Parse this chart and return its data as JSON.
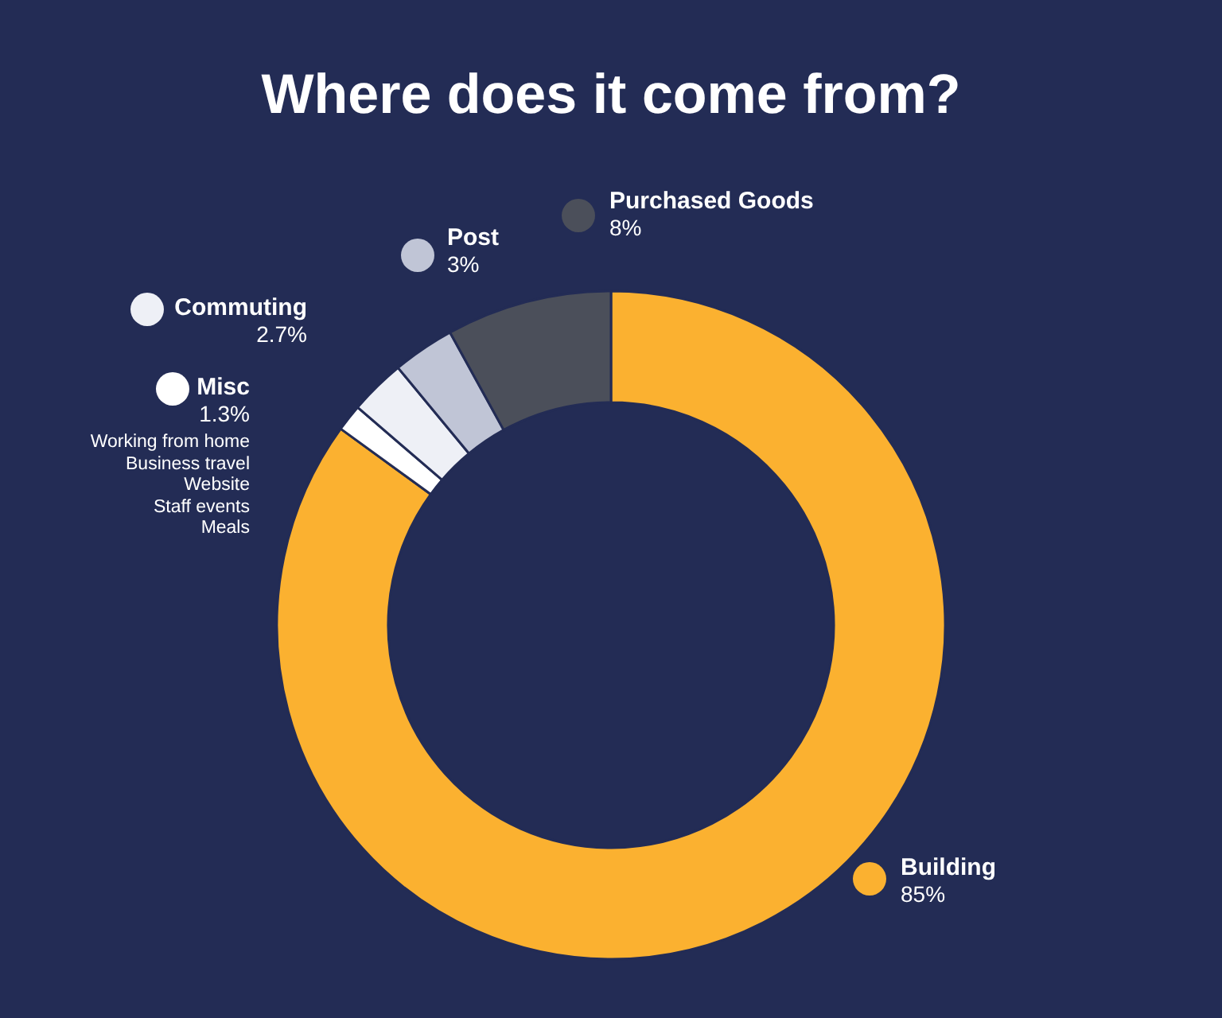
{
  "chart_data": {
    "type": "donut",
    "title": "Where does it come from?",
    "categories": [
      "Building",
      "Misc",
      "Commuting",
      "Post",
      "Purchased Goods"
    ],
    "values": [
      85,
      1.3,
      2.7,
      3,
      8
    ],
    "value_labels": [
      "85%",
      "1.3%",
      "2.7%",
      "3%",
      "8%"
    ],
    "colors": [
      "#fbb130",
      "#ffffff",
      "#eef0f6",
      "#c0c5d6",
      "#4b4f5a"
    ],
    "legend": "top",
    "annotations": [
      "Working from home",
      "Business travel",
      "Website",
      "Staff events",
      "Meals"
    ]
  }
}
